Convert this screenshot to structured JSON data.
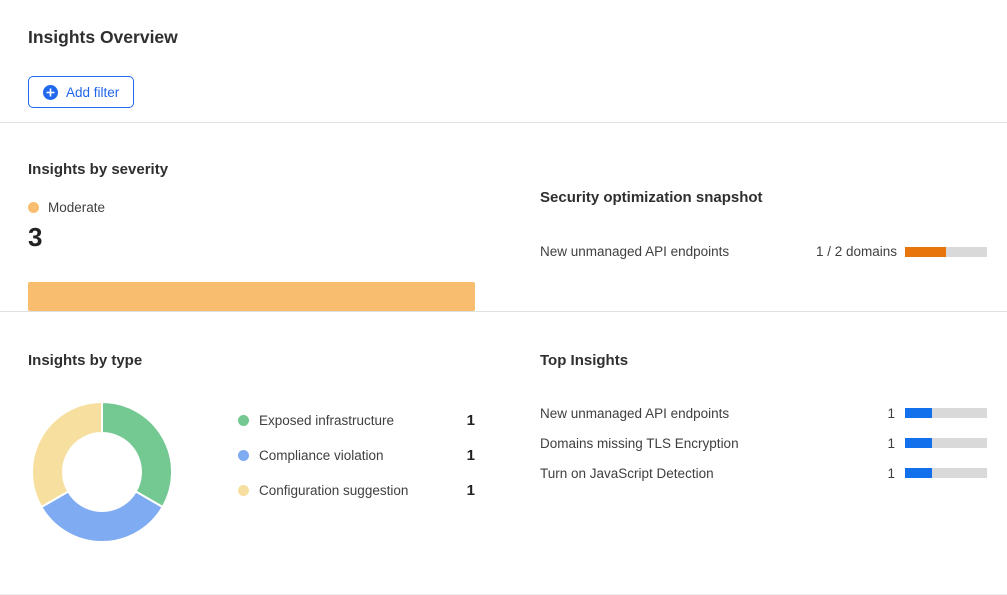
{
  "header": {
    "title": "Insights Overview"
  },
  "toolbar": {
    "add_filter_label": "Add filter"
  },
  "colors": {
    "accent_blue": "#2268EC",
    "bar_blue": "#1270ED",
    "progress_orange": "#E8740C",
    "severity_orange": "#F9BD6F",
    "track_gray": "#D9D9D9",
    "divider_gray": "#E0E0E0"
  },
  "chart_data": [
    {
      "type": "bar",
      "title": "Insights by severity",
      "orientation": "horizontal",
      "stacked": true,
      "series": [
        {
          "name": "Moderate",
          "values": [
            3
          ],
          "color": "#F9BD6F"
        }
      ],
      "xlim": [
        0,
        3
      ],
      "legend_position": "top-left",
      "grid": false
    },
    {
      "type": "bar",
      "title": "Security optimization snapshot",
      "orientation": "horizontal",
      "categories": [
        "New unmanaged API endpoints"
      ],
      "values": [
        1
      ],
      "totals": [
        2
      ],
      "value_labels": [
        "1 / 2 domains"
      ],
      "color": "#E8740C",
      "track_color": "#D9D9D9"
    },
    {
      "type": "pie",
      "subtype": "donut",
      "title": "Insights by type",
      "categories": [
        "Exposed infrastructure",
        "Compliance violation",
        "Configuration suggestion"
      ],
      "values": [
        1,
        1,
        1
      ],
      "colors": [
        "#74C892",
        "#7FABF2",
        "#F6DF9F"
      ],
      "legend_position": "right",
      "start_angle_deg": -90,
      "direction": "clockwise"
    },
    {
      "type": "bar",
      "title": "Top Insights",
      "orientation": "horizontal",
      "categories": [
        "New unmanaged API endpoints",
        "Domains missing TLS Encryption",
        "Turn on JavaScript Detection"
      ],
      "values": [
        1,
        1,
        1
      ],
      "xlim": [
        0,
        3
      ],
      "color": "#1270ED",
      "track_color": "#D9D9D9"
    }
  ]
}
